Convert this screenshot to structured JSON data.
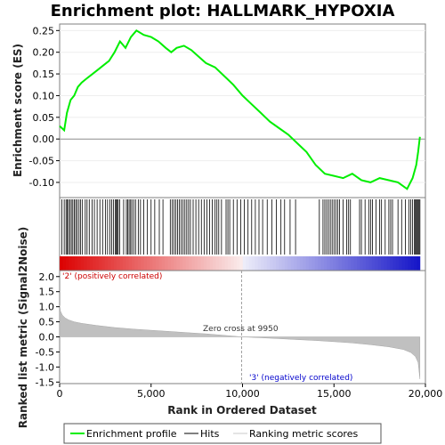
{
  "chart_data": {
    "type": "line",
    "title": "Enrichment plot: HALLMARK_HYPOXIA",
    "top_panel": {
      "ylabel": "Enrichment score (ES)",
      "ylim": [
        -0.135,
        0.265
      ],
      "yticks": [
        -0.1,
        -0.05,
        0.0,
        0.05,
        0.1,
        0.15,
        0.2,
        0.25
      ],
      "ytick_labels": [
        "-0.10",
        "-0.05",
        "0.00",
        "0.05",
        "0.10",
        "0.15",
        "0.20",
        "0.25"
      ],
      "series": [
        {
          "name": "Enrichment profile",
          "color": "#00ee00",
          "x": [
            0,
            250,
            400,
            600,
            800,
            1000,
            1200,
            1500,
            1800,
            2100,
            2400,
            2700,
            3000,
            3300,
            3600,
            3900,
            4200,
            4600,
            5000,
            5400,
            5800,
            6100,
            6400,
            6800,
            7200,
            7600,
            8000,
            8500,
            9000,
            9500,
            10000,
            10500,
            11000,
            11500,
            12000,
            12500,
            13000,
            13500,
            14000,
            14500,
            15000,
            15500,
            16000,
            16500,
            17000,
            17500,
            18000,
            18500,
            19000,
            19300,
            19500,
            19600,
            19700
          ],
          "y": [
            0.03,
            0.02,
            0.06,
            0.09,
            0.1,
            0.12,
            0.13,
            0.14,
            0.15,
            0.16,
            0.17,
            0.18,
            0.2,
            0.225,
            0.21,
            0.235,
            0.25,
            0.24,
            0.235,
            0.225,
            0.21,
            0.2,
            0.21,
            0.215,
            0.205,
            0.19,
            0.175,
            0.165,
            0.145,
            0.125,
            0.1,
            0.08,
            0.06,
            0.04,
            0.025,
            0.01,
            -0.01,
            -0.03,
            -0.06,
            -0.08,
            -0.085,
            -0.09,
            -0.08,
            -0.095,
            -0.1,
            -0.09,
            -0.095,
            -0.1,
            -0.115,
            -0.09,
            -0.06,
            -0.03,
            0.005
          ]
        }
      ]
    },
    "hits_panel": {
      "hits_label": "Hits",
      "hit_ranks": [
        120,
        250,
        350,
        420,
        480,
        560,
        640,
        720,
        800,
        880,
        960,
        1060,
        1150,
        1250,
        1400,
        1500,
        1620,
        1780,
        1900,
        2050,
        2200,
        2350,
        2500,
        2620,
        2750,
        2850,
        2950,
        3050,
        3100,
        3150,
        3200,
        3280,
        3500,
        3650,
        3720,
        3800,
        3880,
        3950,
        4050,
        4150,
        4300,
        4420,
        4600,
        4800,
        5000,
        5200,
        5450,
        5650,
        6050,
        6150,
        6250,
        6350,
        6450,
        6550,
        6650,
        6750,
        6850,
        6950,
        7050,
        7150,
        7300,
        7450,
        7600,
        7750,
        7900,
        8050,
        8200,
        8350,
        8500,
        8600,
        8700,
        8850,
        9100,
        9200,
        9300,
        9500,
        9700,
        9900,
        10100,
        10300,
        10500,
        10700,
        10900,
        11100,
        11350,
        11600,
        11850,
        12100,
        12300,
        12600,
        12900,
        14200,
        14400,
        14500,
        14600,
        14700,
        14800,
        14900,
        15000,
        15100,
        15200,
        15300,
        15500,
        15700,
        15800,
        15900,
        16400,
        16500,
        16700,
        16900,
        17000,
        17100,
        17300,
        17500,
        17600,
        17800,
        18000,
        18100,
        18200,
        18500,
        18700,
        18900,
        19100,
        19200,
        19300,
        19400,
        19450,
        19500,
        19550,
        19600,
        19650,
        19700
      ]
    },
    "bottom_panel": {
      "ylabel": "Ranked list metric (Signal2Noise)",
      "xlabel": "Rank in Ordered Dataset",
      "xlim": [
        0,
        20000
      ],
      "xticks": [
        0,
        5000,
        10000,
        15000,
        20000
      ],
      "xtick_labels": [
        "0",
        "5,000",
        "10,000",
        "15,000",
        "20,000"
      ],
      "ylim": [
        -1.55,
        2.2
      ],
      "yticks": [
        -1.5,
        -1.0,
        -0.5,
        0.0,
        0.5,
        1.0,
        1.5,
        2.0
      ],
      "ytick_labels": [
        "-1.5",
        "-1.0",
        "-0.5",
        "0.0",
        "0.5",
        "1.0",
        "1.5",
        "2.0"
      ],
      "n_genes": 19700,
      "metric_profile": {
        "x": [
          0,
          50,
          150,
          300,
          500,
          800,
          1200,
          2000,
          3000,
          4000,
          5000,
          6000,
          7000,
          8000,
          9000,
          9950,
          11000,
          12000,
          13000,
          14000,
          15000,
          16000,
          17000,
          18000,
          18800,
          19200,
          19450,
          19600,
          19700
        ],
        "y": [
          1.05,
          0.85,
          0.72,
          0.63,
          0.56,
          0.5,
          0.45,
          0.38,
          0.31,
          0.26,
          0.22,
          0.18,
          0.14,
          0.1,
          0.05,
          0.0,
          -0.03,
          -0.06,
          -0.09,
          -0.12,
          -0.16,
          -0.2,
          -0.26,
          -0.33,
          -0.42,
          -0.52,
          -0.65,
          -0.85,
          -1.4
        ]
      },
      "zero_cross_label": "Zero cross at 9950",
      "zero_cross_rank": 9950,
      "pos_label": "'2' (positively correlated)",
      "neg_label": "'3' (negatively correlated)"
    },
    "legend": {
      "placement": "bottom",
      "entries": [
        "Enrichment profile",
        "Hits",
        "Ranking metric scores"
      ]
    },
    "colors": {
      "profile": "#00ee00",
      "pos_label": "#cc0000",
      "neg_label": "#0000cc",
      "metric_fill": "#c0c0c0",
      "zero_cross": "#a0a0a0"
    }
  }
}
